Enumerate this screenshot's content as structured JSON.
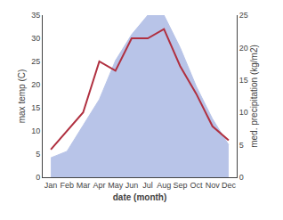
{
  "chart_data": {
    "type": "line",
    "categories": [
      "Jan",
      "Feb",
      "Mar",
      "Apr",
      "May",
      "Jun",
      "Jul",
      "Aug",
      "Sep",
      "Oct",
      "Nov",
      "Dec"
    ],
    "xlabel": "date (month)",
    "ylabel": "max temp (C)",
    "y2label": "med. precipitation (kg/m2)",
    "series": [
      {
        "type": "line",
        "color": "#b03040",
        "values": [
          6,
          10,
          14,
          25,
          23,
          30,
          30,
          32,
          24,
          18,
          11,
          8
        ]
      },
      {
        "type": "area",
        "color": "#b8c4e8",
        "axis": "y2",
        "values": [
          3,
          4,
          8,
          12,
          18,
          22,
          25,
          25,
          20,
          14,
          9,
          5
        ]
      }
    ],
    "ylim": [
      0,
      35
    ],
    "yticks": [
      0,
      5,
      10,
      15,
      20,
      25,
      30,
      35
    ],
    "y2lim": [
      0,
      25
    ],
    "y2ticks": [
      0,
      5,
      10,
      15,
      20,
      25
    ],
    "grid": false
  }
}
